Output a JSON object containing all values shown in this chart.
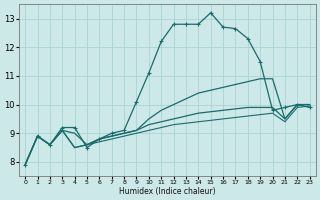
{
  "xlabel": "Humidex (Indice chaleur)",
  "bg_color": "#cce8e8",
  "grid_color": "#aad4d4",
  "line_color": "#1a6b6b",
  "xlim": [
    -0.5,
    23.5
  ],
  "ylim": [
    7.5,
    13.5
  ],
  "xticks": [
    0,
    1,
    2,
    3,
    4,
    5,
    6,
    7,
    8,
    9,
    10,
    11,
    12,
    13,
    14,
    15,
    16,
    17,
    18,
    19,
    20,
    21,
    22,
    23
  ],
  "yticks": [
    8,
    9,
    10,
    11,
    12,
    13
  ],
  "series": [
    {
      "x": [
        0,
        1,
        2,
        3,
        4,
        5,
        6,
        7,
        8,
        9,
        10,
        11,
        12,
        13,
        14,
        15,
        16,
        17,
        18,
        19,
        20,
        21,
        22,
        23
      ],
      "y": [
        7.9,
        8.9,
        8.6,
        9.2,
        9.2,
        8.5,
        8.8,
        9.0,
        9.1,
        10.1,
        11.1,
        12.2,
        12.8,
        12.8,
        12.8,
        13.2,
        12.7,
        12.65,
        12.3,
        11.5,
        9.8,
        9.9,
        10.0,
        9.9
      ],
      "marker": "+",
      "lw": 0.9
    },
    {
      "x": [
        0,
        1,
        2,
        3,
        4,
        5,
        6,
        7,
        8,
        9,
        10,
        11,
        12,
        13,
        14,
        15,
        16,
        17,
        18,
        19,
        20,
        21,
        22,
        23
      ],
      "y": [
        7.9,
        8.9,
        8.6,
        9.1,
        9.0,
        8.6,
        8.8,
        8.9,
        9.0,
        9.1,
        9.5,
        9.8,
        10.0,
        10.2,
        10.4,
        10.5,
        10.6,
        10.7,
        10.8,
        10.9,
        10.9,
        9.5,
        10.0,
        10.0
      ],
      "marker": null,
      "lw": 0.9
    },
    {
      "x": [
        0,
        1,
        2,
        3,
        4,
        5,
        6,
        7,
        8,
        9,
        10,
        11,
        12,
        13,
        14,
        15,
        16,
        17,
        18,
        19,
        20,
        21,
        22,
        23
      ],
      "y": [
        7.9,
        8.9,
        8.6,
        9.1,
        8.5,
        8.6,
        8.8,
        8.9,
        9.0,
        9.1,
        9.3,
        9.4,
        9.5,
        9.6,
        9.7,
        9.75,
        9.8,
        9.85,
        9.9,
        9.9,
        9.9,
        9.5,
        10.0,
        10.0
      ],
      "marker": null,
      "lw": 0.9
    },
    {
      "x": [
        0,
        1,
        2,
        3,
        4,
        5,
        6,
        7,
        8,
        9,
        10,
        11,
        12,
        13,
        14,
        15,
        16,
        17,
        18,
        19,
        20,
        21,
        22,
        23
      ],
      "y": [
        7.9,
        8.9,
        8.6,
        9.1,
        8.5,
        8.6,
        8.7,
        8.8,
        8.9,
        9.0,
        9.1,
        9.2,
        9.3,
        9.35,
        9.4,
        9.45,
        9.5,
        9.55,
        9.6,
        9.65,
        9.7,
        9.4,
        9.9,
        9.95
      ],
      "marker": null,
      "lw": 0.8
    }
  ]
}
